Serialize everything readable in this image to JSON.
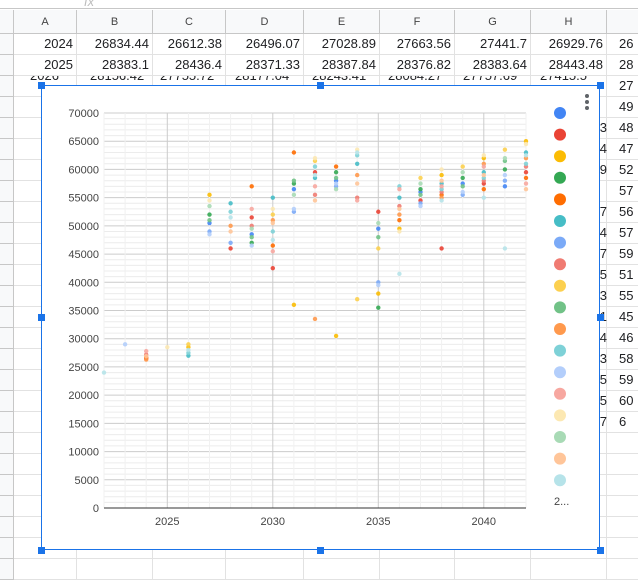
{
  "formula_bar": {
    "fx_label": "fx"
  },
  "columns": [
    "A",
    "B",
    "C",
    "D",
    "E",
    "F",
    "G",
    "H"
  ],
  "rows": [
    [
      "2024",
      "26834.44",
      "26612.38",
      "26496.07",
      "27028.89",
      "27663.56",
      "27441.7",
      "26929.76",
      "26"
    ],
    [
      "2025",
      "28383.1",
      "28436.4",
      "28371.33",
      "28387.84",
      "28376.82",
      "28383.64",
      "28443.48",
      "28"
    ],
    [
      "2026",
      "28156.42",
      "27755.72",
      "28177.04",
      "28243.41",
      "28084.27",
      "27757.69",
      "27415.5",
      "27"
    ]
  ],
  "right_edge_values": [
    "27",
    "49",
    "48",
    "47",
    "52",
    "57",
    "56",
    "57",
    "59",
    "51",
    "55",
    "45",
    "46",
    "58",
    "59",
    "60",
    "6"
  ],
  "right_edge_fragments": [
    "3",
    "4",
    "9",
    "7",
    "4",
    "7",
    "5",
    "3",
    "1",
    "4",
    "3",
    "5",
    "5",
    "7"
  ],
  "chart_data": {
    "type": "scatter",
    "x_ticks": [
      "2025",
      "2030",
      "2035",
      "2040"
    ],
    "y_ticks": [
      "0",
      "5000",
      "10000",
      "15000",
      "20000",
      "25000",
      "30000",
      "35000",
      "40000",
      "45000",
      "50000",
      "55000",
      "60000",
      "65000",
      "70000"
    ],
    "xlim": [
      2022,
      2042
    ],
    "ylim": [
      0,
      70000
    ],
    "grid": true,
    "legend_position": "right",
    "legend_more": "2...",
    "series": [
      {
        "color": "#4285f4",
        "values": [
          [
            2027,
            50500
          ],
          [
            2029,
            48500
          ],
          [
            2031,
            56500
          ],
          [
            2033,
            58000
          ],
          [
            2035,
            49500
          ],
          [
            2037,
            56000
          ],
          [
            2039,
            57500
          ],
          [
            2041,
            57000
          ]
        ]
      },
      {
        "color": "#ea4335",
        "values": [
          [
            2024,
            26500
          ],
          [
            2028,
            46000
          ],
          [
            2029,
            51500
          ],
          [
            2030,
            42500
          ],
          [
            2032,
            59500
          ],
          [
            2035,
            52500
          ],
          [
            2037,
            54500
          ],
          [
            2038,
            46000
          ],
          [
            2040,
            57500
          ],
          [
            2042,
            59500
          ]
        ]
      },
      {
        "color": "#fbbc04",
        "values": [
          [
            2026,
            28500
          ],
          [
            2027,
            55500
          ],
          [
            2031,
            36000
          ],
          [
            2033,
            30500
          ],
          [
            2035,
            38000
          ],
          [
            2036,
            49500
          ],
          [
            2038,
            59000
          ],
          [
            2040,
            62000
          ],
          [
            2042,
            65000
          ]
        ]
      },
      {
        "color": "#34a853",
        "values": [
          [
            2027,
            52000
          ],
          [
            2029,
            47000
          ],
          [
            2031,
            57500
          ],
          [
            2033,
            59500
          ],
          [
            2035,
            35500
          ],
          [
            2037,
            56500
          ],
          [
            2039,
            58500
          ],
          [
            2041,
            60000
          ]
        ]
      },
      {
        "color": "#ff6d01",
        "values": [
          [
            2024,
            26700
          ],
          [
            2029,
            57000
          ],
          [
            2030,
            46500
          ],
          [
            2031,
            63000
          ],
          [
            2033,
            60500
          ],
          [
            2036,
            51000
          ],
          [
            2038,
            55500
          ],
          [
            2040,
            56500
          ],
          [
            2042,
            58500
          ]
        ]
      },
      {
        "color": "#46bdc6",
        "values": [
          [
            2026,
            27000
          ],
          [
            2028,
            54000
          ],
          [
            2030,
            55000
          ],
          [
            2032,
            58500
          ],
          [
            2034,
            61000
          ],
          [
            2036,
            55000
          ],
          [
            2038,
            57500
          ],
          [
            2040,
            59500
          ],
          [
            2042,
            63000
          ]
        ]
      },
      {
        "color": "#7baaf7",
        "values": [
          [
            2027,
            49000
          ],
          [
            2028,
            47000
          ],
          [
            2031,
            52500
          ],
          [
            2033,
            57000
          ],
          [
            2035,
            40000
          ],
          [
            2037,
            54000
          ],
          [
            2039,
            55500
          ],
          [
            2041,
            58000
          ]
        ]
      },
      {
        "color": "#f07b72",
        "values": [
          [
            2024,
            27200
          ],
          [
            2029,
            50000
          ],
          [
            2032,
            55500
          ],
          [
            2034,
            55000
          ],
          [
            2036,
            53500
          ],
          [
            2038,
            56000
          ],
          [
            2040,
            58000
          ],
          [
            2042,
            60500
          ]
        ]
      },
      {
        "color": "#fcd04f",
        "values": [
          [
            2026,
            29000
          ],
          [
            2030,
            52000
          ],
          [
            2032,
            61500
          ],
          [
            2034,
            37000
          ],
          [
            2035,
            46000
          ],
          [
            2037,
            58500
          ],
          [
            2039,
            60500
          ],
          [
            2041,
            63500
          ]
        ]
      },
      {
        "color": "#71c287",
        "values": [
          [
            2027,
            51000
          ],
          [
            2029,
            48000
          ],
          [
            2031,
            58000
          ],
          [
            2033,
            58500
          ],
          [
            2035,
            48000
          ],
          [
            2037,
            55500
          ],
          [
            2039,
            57000
          ],
          [
            2041,
            61500
          ]
        ]
      },
      {
        "color": "#ff994d",
        "values": [
          [
            2024,
            26300
          ],
          [
            2028,
            50000
          ],
          [
            2030,
            51000
          ],
          [
            2032,
            33500
          ],
          [
            2034,
            59000
          ],
          [
            2036,
            52000
          ],
          [
            2038,
            55000
          ],
          [
            2040,
            61000
          ],
          [
            2042,
            62000
          ]
        ]
      },
      {
        "color": "#7ed1d7",
        "values": [
          [
            2026,
            27500
          ],
          [
            2028,
            52500
          ],
          [
            2030,
            49000
          ],
          [
            2032,
            60500
          ],
          [
            2034,
            62500
          ],
          [
            2036,
            57000
          ],
          [
            2038,
            56500
          ],
          [
            2040,
            58500
          ],
          [
            2042,
            61000
          ]
        ]
      },
      {
        "color": "#b3cefb",
        "values": [
          [
            2023,
            29000
          ],
          [
            2027,
            48500
          ],
          [
            2029,
            46500
          ],
          [
            2031,
            53000
          ],
          [
            2033,
            57500
          ],
          [
            2035,
            39500
          ],
          [
            2037,
            53500
          ],
          [
            2039,
            56000
          ],
          [
            2041,
            59000
          ]
        ]
      },
      {
        "color": "#f7a7a0",
        "values": [
          [
            2024,
            27800
          ],
          [
            2029,
            53000
          ],
          [
            2030,
            45500
          ],
          [
            2032,
            57000
          ],
          [
            2034,
            54500
          ],
          [
            2036,
            56500
          ],
          [
            2038,
            57000
          ],
          [
            2040,
            60500
          ],
          [
            2042,
            57500
          ]
        ]
      },
      {
        "color": "#fce8b2",
        "values": [
          [
            2025,
            28500
          ],
          [
            2027,
            54500
          ],
          [
            2030,
            53000
          ],
          [
            2032,
            62000
          ],
          [
            2034,
            63500
          ],
          [
            2036,
            49000
          ],
          [
            2038,
            60000
          ],
          [
            2040,
            62500
          ],
          [
            2042,
            64500
          ]
        ]
      },
      {
        "color": "#a8dab5",
        "values": [
          [
            2027,
            53500
          ],
          [
            2029,
            49500
          ],
          [
            2031,
            55500
          ],
          [
            2033,
            56500
          ],
          [
            2035,
            50500
          ],
          [
            2037,
            57500
          ],
          [
            2039,
            59500
          ],
          [
            2041,
            62000
          ]
        ]
      },
      {
        "color": "#ffc599",
        "values": [
          [
            2024,
            26900
          ],
          [
            2028,
            49000
          ],
          [
            2030,
            50500
          ],
          [
            2032,
            54500
          ],
          [
            2034,
            57500
          ],
          [
            2036,
            53000
          ],
          [
            2038,
            58000
          ],
          [
            2040,
            59000
          ],
          [
            2042,
            56500
          ]
        ]
      },
      {
        "color": "#b6e3e9",
        "values": [
          [
            2022,
            24000
          ],
          [
            2026,
            28000
          ],
          [
            2028,
            51500
          ],
          [
            2030,
            47500
          ],
          [
            2032,
            59000
          ],
          [
            2034,
            63000
          ],
          [
            2036,
            41500
          ],
          [
            2038,
            54500
          ],
          [
            2040,
            55000
          ],
          [
            2041,
            46000
          ],
          [
            2042,
            62500
          ]
        ]
      }
    ]
  }
}
